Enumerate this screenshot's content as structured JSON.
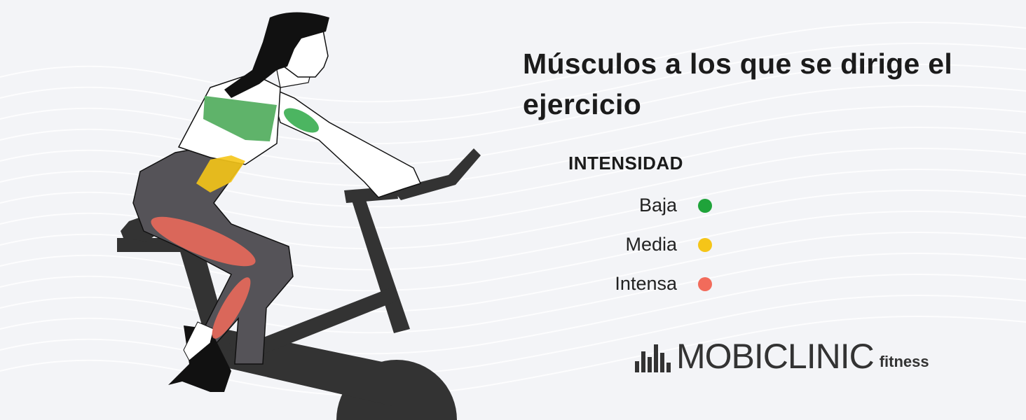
{
  "title": "Músculos a los que se dirige el ejercicio",
  "legend": {
    "heading": "INTENSIDAD",
    "items": [
      {
        "label": "Baja",
        "color": "#1fa33a"
      },
      {
        "label": "Media",
        "color": "#f5c518"
      },
      {
        "label": "Intensa",
        "color": "#f26b5b"
      }
    ]
  },
  "logo": {
    "brand": "MOBICLINIC",
    "sub": "fitness"
  },
  "colors": {
    "background": "#e2e3ea",
    "muscle_low": "#5fb36a",
    "muscle_medium": "#f5c518",
    "muscle_high": "#f26b5b",
    "bike": "#333333"
  }
}
